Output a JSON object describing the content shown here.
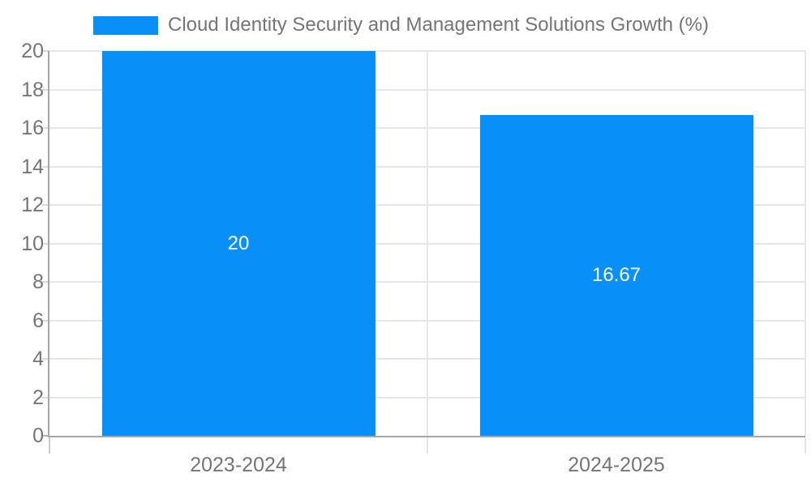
{
  "chart_data": {
    "type": "bar",
    "title": "Cloud Identity Security and Management Solutions Growth (%)",
    "categories": [
      "2023-2024",
      "2024-2025"
    ],
    "series": [
      {
        "name": "Cloud Identity Security and Management Solutions Growth (%)",
        "values": [
          20,
          16.67
        ]
      }
    ],
    "value_labels": [
      "20",
      "16.67"
    ],
    "value_label_position": "inside-center",
    "xlabel": "",
    "ylabel": "",
    "ylim": [
      0,
      20
    ],
    "y_ticks": [
      0,
      2,
      4,
      6,
      8,
      10,
      12,
      14,
      16,
      18,
      20
    ],
    "grid": true,
    "legend_position": "top-left",
    "colors": {
      "bar": "#0890F8",
      "value_label_text": "#FFFFFF",
      "grid_line": "#E6E6E6",
      "axis_line": "#A6A6A6",
      "tick_mark": "#D9D9D9",
      "boundary_tick_first": "#C9C9C9",
      "boundary_tick": "#E4E4E4",
      "tick_text": "#757575",
      "legend_text": "#757575",
      "background": "#FFFFFF"
    }
  },
  "legend": {
    "label": "Cloud Identity Security and Management Solutions Growth (%)"
  }
}
